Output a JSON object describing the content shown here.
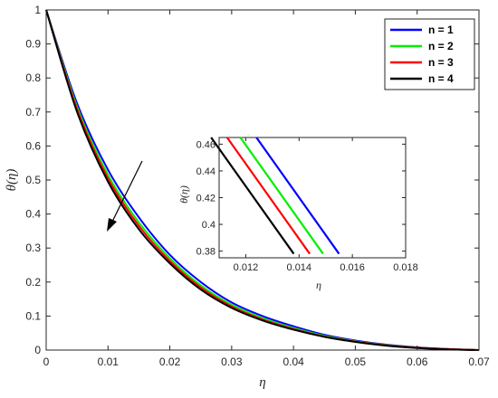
{
  "chart_data": [
    {
      "type": "line",
      "xlabel": "η",
      "ylabel": "θ(η)",
      "xlim": [
        0,
        0.07
      ],
      "ylim": [
        0,
        1
      ],
      "xticks": [
        "0",
        "0.01",
        "0.02",
        "0.03",
        "0.04",
        "0.05",
        "0.06",
        "0.07"
      ],
      "yticks": [
        "0",
        "0.1",
        "0.2",
        "0.3",
        "0.4",
        "0.5",
        "0.6",
        "0.7",
        "0.8",
        "0.9",
        "1"
      ],
      "legend_position": "top-right",
      "grid": false,
      "annotation": "arrow pointing down-left indicating θ(η) decreases as n increases",
      "x": [
        0,
        0.005,
        0.01,
        0.015,
        0.02,
        0.025,
        0.03,
        0.035,
        0.04,
        0.045,
        0.05,
        0.055,
        0.06,
        0.065,
        0.07
      ],
      "series": [
        {
          "name": "n = 1",
          "color": "#0000ff",
          "values": [
            1,
            0.725,
            0.53,
            0.39,
            0.28,
            0.2,
            0.14,
            0.1,
            0.07,
            0.045,
            0.028,
            0.016,
            0.008,
            0.003,
            0
          ]
        },
        {
          "name": "n = 2",
          "color": "#00ee00",
          "values": [
            1,
            0.715,
            0.515,
            0.375,
            0.27,
            0.19,
            0.133,
            0.094,
            0.065,
            0.042,
            0.026,
            0.015,
            0.007,
            0.003,
            0
          ]
        },
        {
          "name": "n = 3",
          "color": "#ff0000",
          "values": [
            1,
            0.708,
            0.505,
            0.365,
            0.262,
            0.184,
            0.128,
            0.09,
            0.062,
            0.04,
            0.025,
            0.014,
            0.007,
            0.003,
            0
          ]
        },
        {
          "name": "n = 4",
          "color": "#000000",
          "values": [
            1,
            0.7,
            0.495,
            0.355,
            0.255,
            0.178,
            0.124,
            0.087,
            0.06,
            0.039,
            0.024,
            0.013,
            0.006,
            0.002,
            0
          ]
        }
      ]
    },
    {
      "type": "line",
      "xlabel": "η",
      "ylabel": "θ(η)",
      "xlim": [
        0.011,
        0.018
      ],
      "ylim": [
        0.375,
        0.465
      ],
      "xticks": [
        "0.012",
        "0.014",
        "0.016",
        "0.018"
      ],
      "yticks": [
        "0.38",
        "0.4",
        "0.42",
        "0.44",
        "0.46"
      ],
      "series": [
        {
          "name": "n = 1",
          "color": "#0000ff",
          "x": [
            0.0124,
            0.0155
          ],
          "values": [
            0.465,
            0.378
          ]
        },
        {
          "name": "n = 2",
          "color": "#00ee00",
          "x": [
            0.0118,
            0.0149
          ],
          "values": [
            0.465,
            0.378
          ]
        },
        {
          "name": "n = 3",
          "color": "#ff0000",
          "x": [
            0.0113,
            0.0144
          ],
          "values": [
            0.465,
            0.378
          ]
        },
        {
          "name": "n = 4",
          "color": "#000000",
          "x": [
            0.0107,
            0.0138
          ],
          "values": [
            0.465,
            0.378
          ]
        }
      ]
    }
  ]
}
